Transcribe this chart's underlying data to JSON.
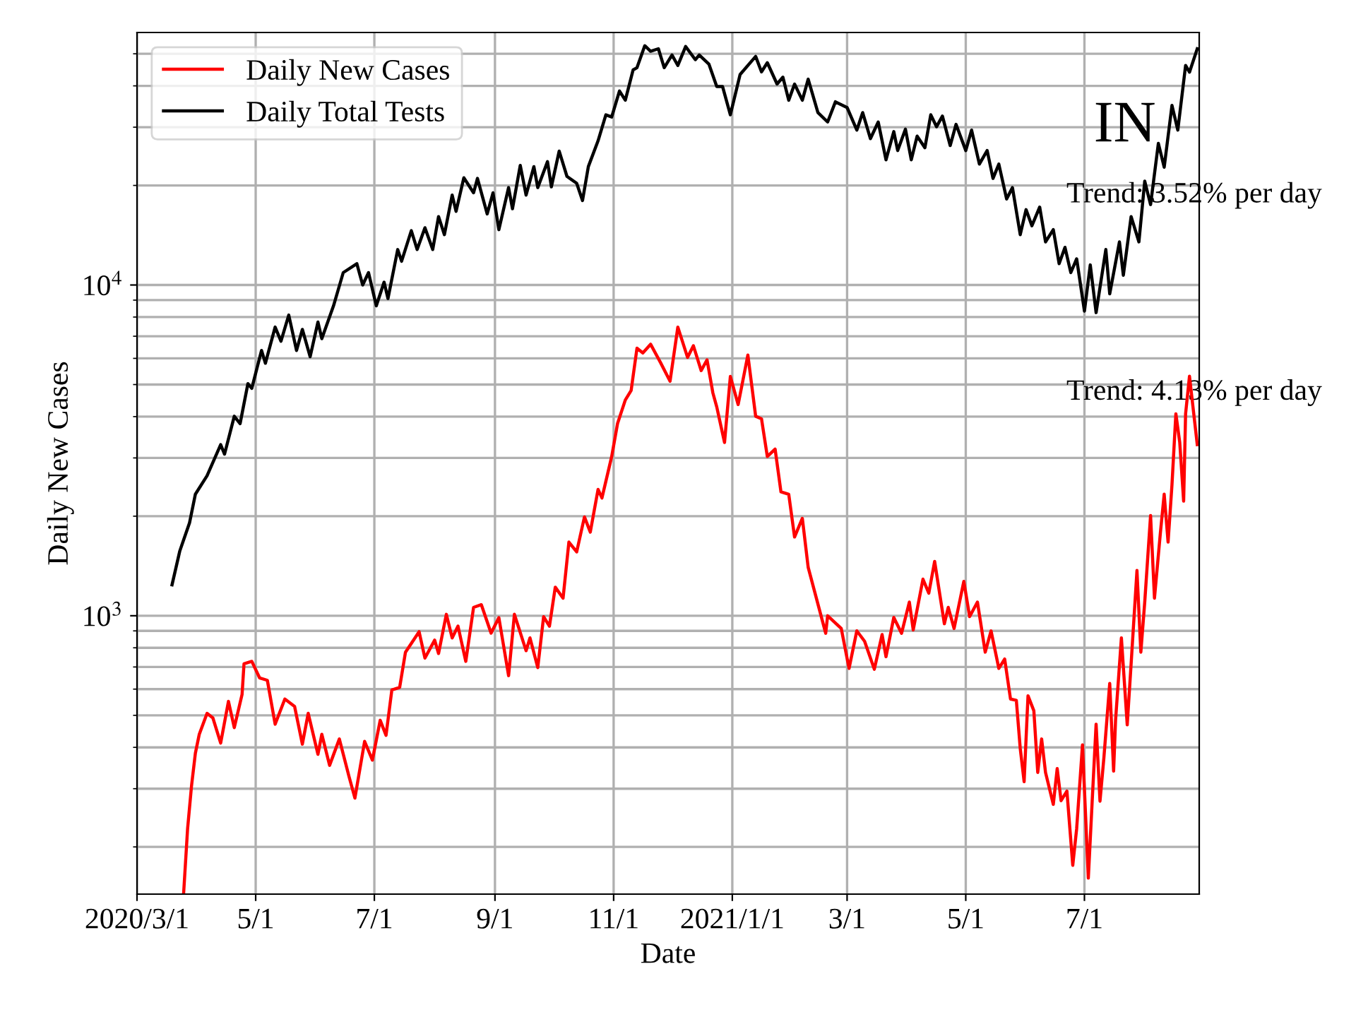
{
  "chart_data": {
    "type": "line",
    "xlabel": "Date",
    "ylabel": "Daily New Cases",
    "log": "y",
    "grid": true,
    "legend": "top left",
    "marker": "none",
    "line_style": "solid",
    "annotations": [
      "IN",
      "Trend: 3.52% per day",
      "Trend: 4.13% per day"
    ],
    "xlim": [
      "2020-03-01",
      "2021-08-29"
    ],
    "xticks": [
      {
        "value": "2020-03-01",
        "label": "2020/3/1"
      },
      {
        "value": "2020-05-01",
        "label": "5/1"
      },
      {
        "value": "2020-07-01",
        "label": "7/1"
      },
      {
        "value": "2020-09-01",
        "label": "9/1"
      },
      {
        "value": "2020-11-01",
        "label": "11/1"
      },
      {
        "value": "2021-01-01",
        "label": "2021/1/1"
      },
      {
        "value": "2021-03-01",
        "label": "3/1"
      },
      {
        "value": "2021-05-01",
        "label": "5/1"
      },
      {
        "value": "2021-07-01",
        "label": "7/1"
      }
    ],
    "ylim": [
      144,
      58000
    ],
    "yticks": [
      {
        "value": 200,
        "label": null
      },
      {
        "value": 300,
        "label": null
      },
      {
        "value": 400,
        "label": null
      },
      {
        "value": 500,
        "label": null
      },
      {
        "value": 600,
        "label": null
      },
      {
        "value": 700,
        "label": null
      },
      {
        "value": 800,
        "label": null
      },
      {
        "value": 900,
        "label": null
      },
      {
        "value": 1000,
        "label": "10$^{3}$"
      },
      {
        "value": 2000,
        "label": null
      },
      {
        "value": 3000,
        "label": null
      },
      {
        "value": 4000,
        "label": null
      },
      {
        "value": 5000,
        "label": null
      },
      {
        "value": 6000,
        "label": null
      },
      {
        "value": 7000,
        "label": null
      },
      {
        "value": 8000,
        "label": null
      },
      {
        "value": 9000,
        "label": null
      },
      {
        "value": 10000,
        "label": "10$^{4}$"
      },
      {
        "value": 20000,
        "label": null
      },
      {
        "value": 30000,
        "label": null
      },
      {
        "value": 40000,
        "label": null
      },
      {
        "value": 50000,
        "label": null
      }
    ],
    "series": [
      {
        "name": "Daily New Cases",
        "color": "#ff0000",
        "x": [
          "2020-03-25",
          "2020-03-27",
          "2020-03-29",
          "2020-03-31",
          "2020-04-02",
          "2020-04-06",
          "2020-04-09",
          "2020-04-13",
          "2020-04-17",
          "2020-04-20",
          "2020-04-24",
          "2020-04-25",
          "2020-04-29",
          "2020-05-03",
          "2020-05-07",
          "2020-05-11",
          "2020-05-16",
          "2020-05-21",
          "2020-05-25",
          "2020-05-28",
          "2020-06-02",
          "2020-06-04",
          "2020-06-08",
          "2020-06-13",
          "2020-06-18",
          "2020-06-21",
          "2020-06-26",
          "2020-06-30",
          "2020-07-04",
          "2020-07-07",
          "2020-07-10",
          "2020-07-14",
          "2020-07-17",
          "2020-07-24",
          "2020-07-27",
          "2020-08-01",
          "2020-08-03",
          "2020-08-07",
          "2020-08-10",
          "2020-08-13",
          "2020-08-17",
          "2020-08-21",
          "2020-08-25",
          "2020-08-30",
          "2020-09-03",
          "2020-09-08",
          "2020-09-11",
          "2020-09-17",
          "2020-09-19",
          "2020-09-23",
          "2020-09-26",
          "2020-09-29",
          "2020-10-02",
          "2020-10-06",
          "2020-10-09",
          "2020-10-13",
          "2020-10-17",
          "2020-10-20",
          "2020-10-24",
          "2020-10-26",
          "2020-10-31",
          "2020-11-03",
          "2020-11-07",
          "2020-11-10",
          "2020-11-13",
          "2020-11-16",
          "2020-11-20",
          "2020-11-25",
          "2020-11-30",
          "2020-12-04",
          "2020-12-09",
          "2020-12-12",
          "2020-12-16",
          "2020-12-19",
          "2020-12-22",
          "2020-12-24",
          "2020-12-28",
          "2020-12-31",
          "2021-01-04",
          "2021-01-09",
          "2021-01-13",
          "2021-01-16",
          "2021-01-19",
          "2021-01-23",
          "2021-01-26",
          "2021-01-30",
          "2021-02-02",
          "2021-02-06",
          "2021-02-09",
          "2021-02-18",
          "2021-02-19",
          "2021-02-26",
          "2021-03-02",
          "2021-03-06",
          "2021-03-10",
          "2021-03-15",
          "2021-03-19",
          "2021-03-21",
          "2021-03-25",
          "2021-03-29",
          "2021-04-02",
          "2021-04-04",
          "2021-04-09",
          "2021-04-12",
          "2021-04-15",
          "2021-04-20",
          "2021-04-22",
          "2021-04-25",
          "2021-04-30",
          "2021-05-03",
          "2021-05-07",
          "2021-05-11",
          "2021-05-14",
          "2021-05-18",
          "2021-05-21",
          "2021-05-24",
          "2021-05-27",
          "2021-05-29",
          "2021-05-31",
          "2021-06-02",
          "2021-06-05",
          "2021-06-07",
          "2021-06-09",
          "2021-06-11",
          "2021-06-15",
          "2021-06-17",
          "2021-06-19",
          "2021-06-22",
          "2021-06-25",
          "2021-06-27",
          "2021-06-30",
          "2021-07-03",
          "2021-07-05",
          "2021-07-07",
          "2021-07-09",
          "2021-07-11",
          "2021-07-14",
          "2021-07-16",
          "2021-07-17",
          "2021-07-20",
          "2021-07-23",
          "2021-07-25",
          "2021-07-28",
          "2021-07-30",
          "2021-08-01",
          "2021-08-04",
          "2021-08-06",
          "2021-08-09",
          "2021-08-11",
          "2021-08-13",
          "2021-08-15",
          "2021-08-17",
          "2021-08-19",
          "2021-08-21",
          "2021-08-22",
          "2021-08-24",
          "2021-08-28"
        ],
        "values": [
          146,
          227,
          305,
          384,
          438,
          507,
          491,
          412,
          551,
          459,
          578,
          716,
          728,
          649,
          638,
          470,
          560,
          532,
          409,
          507,
          381,
          438,
          353,
          424,
          326,
          281,
          417,
          366,
          483,
          435,
          597,
          607,
          776,
          895,
          745,
          844,
          769,
          1010,
          857,
          930,
          728,
          1060,
          1080,
          886,
          987,
          659,
          1010,
          784,
          857,
          697,
          993,
          930,
          1220,
          1130,
          1670,
          1560,
          1990,
          1790,
          2410,
          2270,
          3030,
          3810,
          4490,
          4800,
          6440,
          6230,
          6620,
          5840,
          5120,
          7460,
          6040,
          6550,
          5510,
          5940,
          4720,
          4280,
          3340,
          5290,
          4350,
          6140,
          4010,
          3940,
          3030,
          3190,
          2370,
          2330,
          1730,
          1970,
          1400,
          885,
          1000,
          915,
          693,
          900,
          837,
          689,
          877,
          752,
          988,
          885,
          1100,
          906,
          1290,
          1170,
          1460,
          946,
          1060,
          915,
          1270,
          994,
          1100,
          776,
          900,
          693,
          740,
          560,
          555,
          397,
          315,
          573,
          516,
          336,
          424,
          336,
          269,
          345,
          276,
          295,
          176,
          227,
          407,
          161,
          276,
          470,
          275,
          372,
          624,
          339,
          483,
          857,
          468,
          716,
          1370,
          776,
          1100,
          2010,
          1130,
          1770,
          2330,
          1670,
          2490,
          4080,
          3340,
          2220,
          4080,
          5300,
          3290
        ]
      },
      {
        "name": "Daily Total Tests",
        "color": "#000000",
        "x": [
          "2020-03-19",
          "2020-03-23",
          "2020-03-28",
          "2020-03-31",
          "2020-04-06",
          "2020-04-13",
          "2020-04-15",
          "2020-04-20",
          "2020-04-23",
          "2020-04-27",
          "2020-04-29",
          "2020-05-04",
          "2020-05-06",
          "2020-05-11",
          "2020-05-14",
          "2020-05-18",
          "2020-05-22",
          "2020-05-25",
          "2020-05-29",
          "2020-06-02",
          "2020-06-04",
          "2020-06-10",
          "2020-06-15",
          "2020-06-22",
          "2020-06-25",
          "2020-06-28",
          "2020-07-02",
          "2020-07-06",
          "2020-07-08",
          "2020-07-13",
          "2020-07-15",
          "2020-07-20",
          "2020-07-23",
          "2020-07-27",
          "2020-07-31",
          "2020-08-03",
          "2020-08-06",
          "2020-08-10",
          "2020-08-12",
          "2020-08-16",
          "2020-08-21",
          "2020-08-23",
          "2020-08-28",
          "2020-08-31",
          "2020-09-03",
          "2020-09-08",
          "2020-09-10",
          "2020-09-14",
          "2020-09-17",
          "2020-09-21",
          "2020-09-23",
          "2020-09-28",
          "2020-09-30",
          "2020-10-04",
          "2020-10-08",
          "2020-10-13",
          "2020-10-16",
          "2020-10-19",
          "2020-10-24",
          "2020-10-28",
          "2020-10-31",
          "2020-11-04",
          "2020-11-07",
          "2020-11-11",
          "2020-11-13",
          "2020-11-17",
          "2020-11-20",
          "2020-11-24",
          "2020-11-27",
          "2020-12-01",
          "2020-12-04",
          "2020-12-08",
          "2020-12-13",
          "2020-12-15",
          "2020-12-20",
          "2020-12-24",
          "2020-12-27",
          "2020-12-31",
          "2021-01-05",
          "2021-01-13",
          "2021-01-16",
          "2021-01-19",
          "2021-01-24",
          "2021-01-27",
          "2021-01-30",
          "2021-02-02",
          "2021-02-06",
          "2021-02-09",
          "2021-02-14",
          "2021-02-19",
          "2021-02-23",
          "2021-03-01",
          "2021-03-06",
          "2021-03-09",
          "2021-03-13",
          "2021-03-17",
          "2021-03-21",
          "2021-03-25",
          "2021-03-27",
          "2021-03-31",
          "2021-04-03",
          "2021-04-06",
          "2021-04-10",
          "2021-04-13",
          "2021-04-16",
          "2021-04-19",
          "2021-04-23",
          "2021-04-26",
          "2021-05-01",
          "2021-05-04",
          "2021-05-08",
          "2021-05-12",
          "2021-05-15",
          "2021-05-18",
          "2021-05-22",
          "2021-05-25",
          "2021-05-29",
          "2021-06-01",
          "2021-06-04",
          "2021-06-08",
          "2021-06-11",
          "2021-06-15",
          "2021-06-18",
          "2021-06-21",
          "2021-06-24",
          "2021-06-27",
          "2021-07-01",
          "2021-07-04",
          "2021-07-07",
          "2021-07-12",
          "2021-07-14",
          "2021-07-19",
          "2021-07-21",
          "2021-07-25",
          "2021-07-29",
          "2021-08-01",
          "2021-08-04",
          "2021-08-08",
          "2021-08-11",
          "2021-08-15",
          "2021-08-18",
          "2021-08-22",
          "2021-08-24",
          "2021-08-28"
        ],
        "values": [
          1240,
          1570,
          1910,
          2330,
          2650,
          3290,
          3080,
          4010,
          3810,
          5030,
          4870,
          6340,
          5800,
          7460,
          6760,
          8110,
          6340,
          7340,
          6070,
          7730,
          6880,
          8650,
          10900,
          11600,
          10000,
          10900,
          8650,
          10200,
          9100,
          12800,
          11800,
          14600,
          12800,
          14900,
          12800,
          16100,
          14200,
          18700,
          16700,
          21100,
          19000,
          21000,
          16400,
          19000,
          14700,
          19700,
          17000,
          23000,
          18700,
          22800,
          19700,
          23600,
          19800,
          25400,
          21300,
          20300,
          18000,
          22800,
          27300,
          32700,
          32200,
          38600,
          36200,
          44700,
          45400,
          52900,
          50900,
          51800,
          45400,
          49600,
          46100,
          52600,
          48000,
          49600,
          46500,
          39800,
          39800,
          32700,
          43300,
          49100,
          44100,
          47000,
          40500,
          42500,
          36200,
          40500,
          36200,
          41900,
          33200,
          31100,
          35800,
          34400,
          29400,
          33200,
          27700,
          31100,
          23900,
          29100,
          25500,
          29600,
          23900,
          28200,
          26000,
          32700,
          30100,
          32400,
          26400,
          30600,
          25500,
          29400,
          23200,
          25500,
          21000,
          23200,
          18200,
          19700,
          14200,
          16900,
          15100,
          17200,
          13500,
          14700,
          11600,
          13000,
          10900,
          12000,
          8340,
          11500,
          8250,
          12800,
          9400,
          13500,
          10700,
          16100,
          13500,
          20600,
          17500,
          26800,
          22700,
          34900,
          29400,
          46100,
          44000,
          51800
        ]
      }
    ]
  }
}
